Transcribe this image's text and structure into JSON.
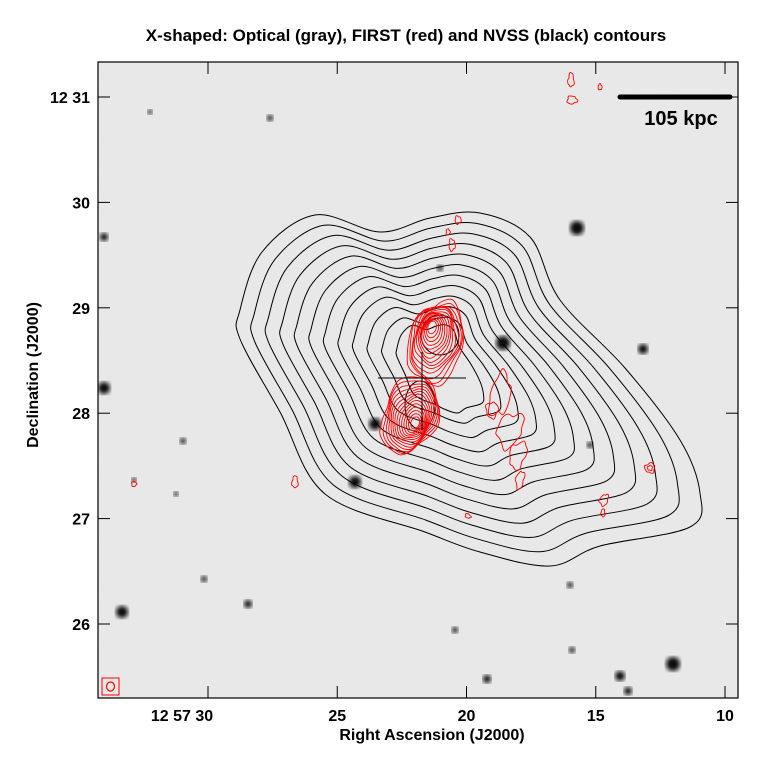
{
  "chart_data": {
    "type": "heatmap",
    "title": "X-shaped: Optical (gray), FIRST (red) and NVSS (black) contours",
    "xlabel": "Right Ascension (J2000)",
    "ylabel": "Declination (J2000)",
    "x_ticks": [
      {
        "value": 30,
        "label": "12 57 30"
      },
      {
        "value": 25,
        "label": "25"
      },
      {
        "value": 20,
        "label": "20"
      },
      {
        "value": 15,
        "label": "15"
      },
      {
        "value": 10,
        "label": "10"
      }
    ],
    "y_ticks": [
      {
        "value": 31,
        "label": "12 31"
      },
      {
        "value": 30,
        "label": "30"
      },
      {
        "value": 29,
        "label": "29"
      },
      {
        "value": 28,
        "label": "28"
      },
      {
        "value": 27,
        "label": "27"
      },
      {
        "value": 26,
        "label": "26"
      }
    ],
    "x_unit": "RA seconds (12h57m)",
    "y_unit": "Dec arcmin (12deg)",
    "xlim": [
      33.6,
      9.4
    ],
    "ylim": [
      25.3,
      31.3
    ],
    "layers": [
      {
        "name": "Optical",
        "style": "gray image"
      },
      {
        "name": "FIRST",
        "style": "red contours",
        "color": "#ff0000"
      },
      {
        "name": "NVSS",
        "style": "black contours",
        "color": "#000000"
      }
    ],
    "scale_bar": {
      "label": "105 kpc"
    },
    "grid": false
  }
}
